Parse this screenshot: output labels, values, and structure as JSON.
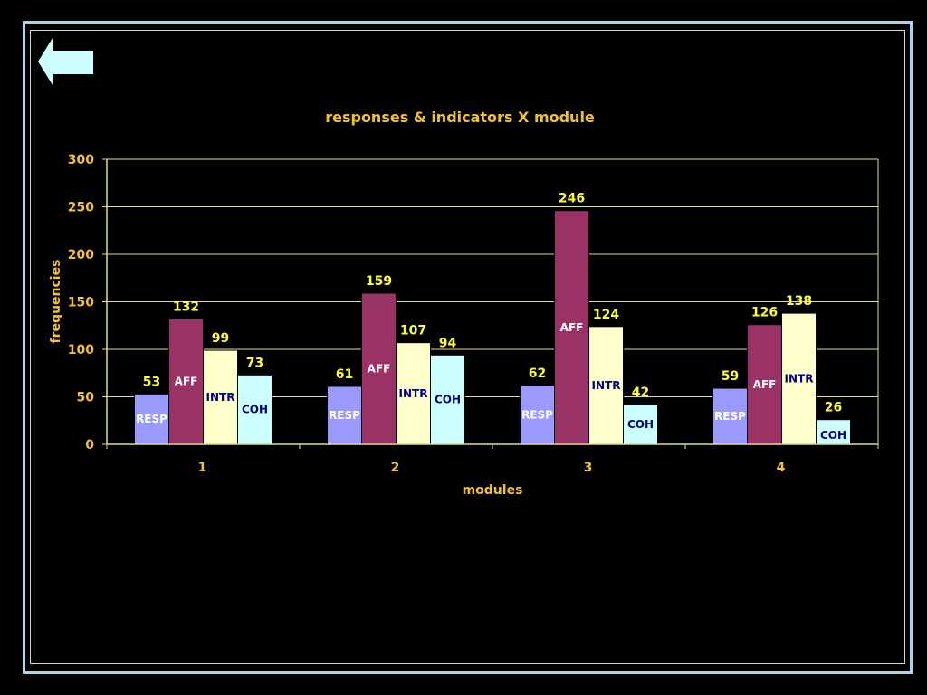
{
  "nav": {
    "back_icon": "left-arrow-icon",
    "back_color": "#ccffff"
  },
  "colors": {
    "axis": "#e5dc8a",
    "grid": "#e5dc8a",
    "text": "#f2c230",
    "value_label": "#ffff33"
  },
  "chart_data": {
    "type": "bar",
    "title": "responses & indicators X module",
    "xlabel": "modules",
    "ylabel": "frequencies",
    "ylim": [
      0,
      300
    ],
    "yticks": [
      0,
      50,
      100,
      150,
      200,
      250,
      300
    ],
    "grid": true,
    "legend": "none",
    "categories": [
      "1",
      "2",
      "3",
      "4"
    ],
    "series": [
      {
        "name": "RESP",
        "values": [
          53,
          61,
          62,
          59
        ],
        "color": "#9999ff",
        "label_color": "#ffffff"
      },
      {
        "name": "AFF",
        "values": [
          132,
          159,
          246,
          126
        ],
        "color": "#993366",
        "label_color": "#ffffff"
      },
      {
        "name": "INTR",
        "values": [
          99,
          107,
          124,
          138
        ],
        "color": "#ffffcc",
        "label_color": "#000080"
      },
      {
        "name": "COH",
        "values": [
          73,
          94,
          42,
          26
        ],
        "color": "#ccffff",
        "label_color": "#000080"
      }
    ]
  }
}
